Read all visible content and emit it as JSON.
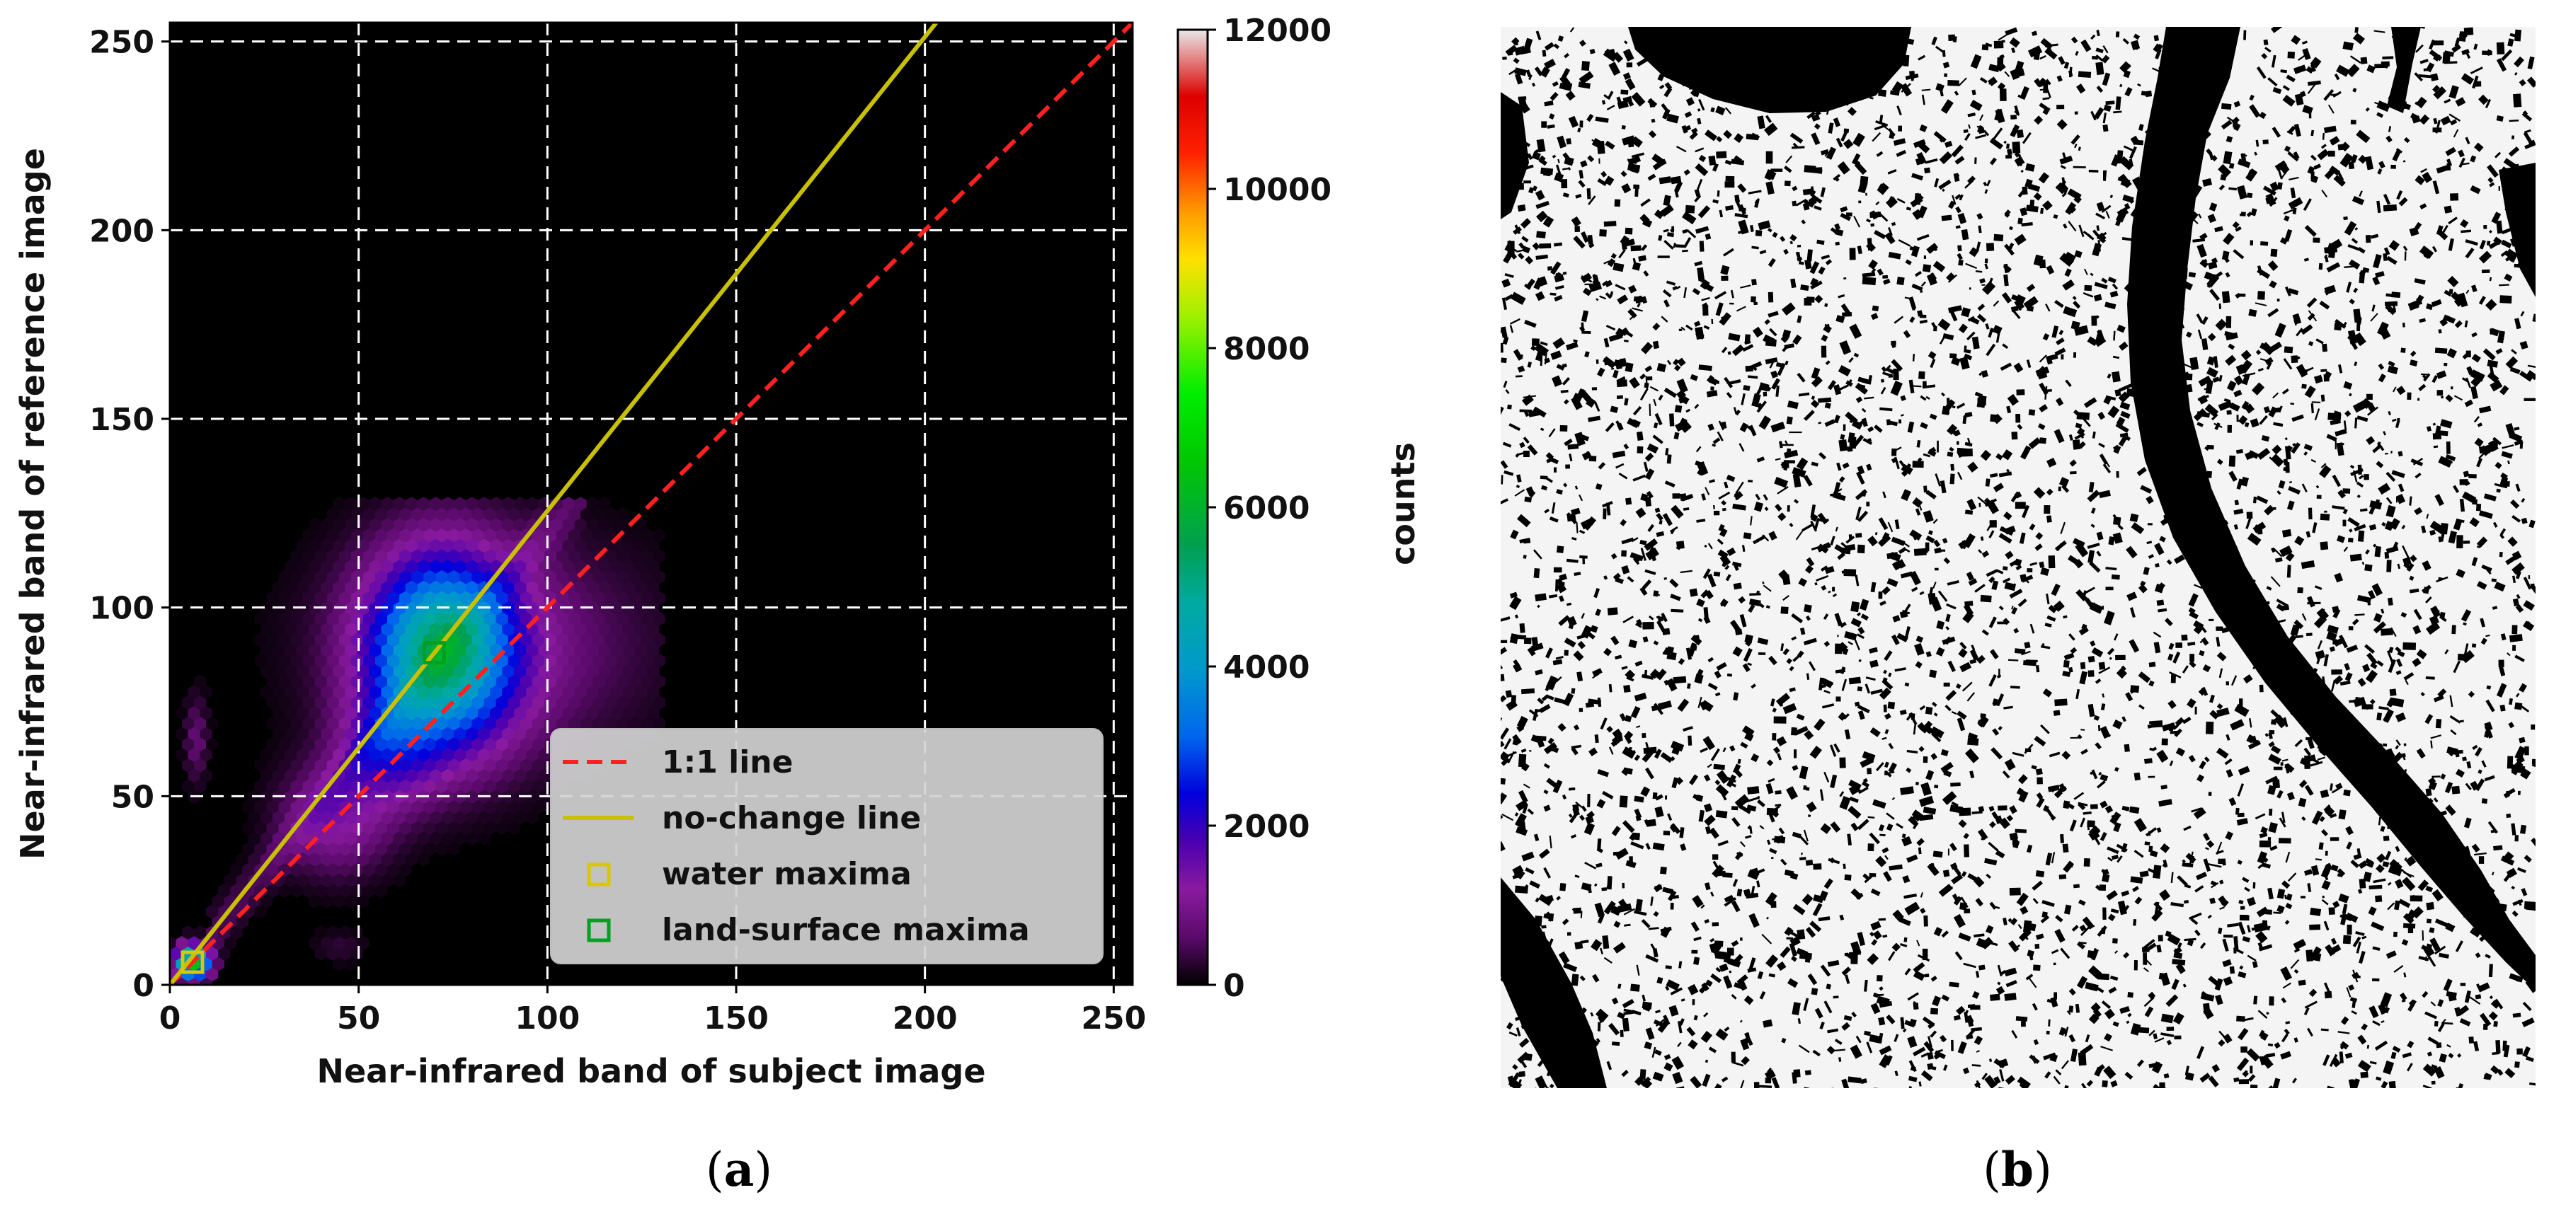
{
  "panels": [
    {
      "id": "a",
      "open": "(",
      "letter": "a",
      "close": ")"
    },
    {
      "id": "b",
      "open": "(",
      "letter": "b",
      "close": ")"
    }
  ],
  "chart_data": {
    "type": "heatmap",
    "subtype": "hexbin",
    "xlabel": "Near-infrared band of subject image",
    "ylabel": "Near-infrared band of reference image",
    "xlim": [
      0,
      255
    ],
    "ylim": [
      0,
      255
    ],
    "xticks": [
      0,
      50,
      100,
      150,
      200,
      250
    ],
    "yticks": [
      0,
      50,
      100,
      150,
      200,
      250
    ],
    "grid": true,
    "background": "#000000",
    "colormap": "nipy_spectral",
    "colorbar": {
      "label": "counts",
      "range": [
        0,
        12000
      ],
      "ticks": [
        0,
        2000,
        4000,
        6000,
        8000,
        10000,
        12000
      ],
      "stops": [
        {
          "v": 0.0,
          "c": "#000000"
        },
        {
          "v": 0.05,
          "c": "#5a0a6a"
        },
        {
          "v": 0.1,
          "c": "#8a1aa0"
        },
        {
          "v": 0.15,
          "c": "#4a00b0"
        },
        {
          "v": 0.2,
          "c": "#0000dd"
        },
        {
          "v": 0.26,
          "c": "#0066ee"
        },
        {
          "v": 0.33,
          "c": "#0099cc"
        },
        {
          "v": 0.4,
          "c": "#00aaa0"
        },
        {
          "v": 0.46,
          "c": "#00a050"
        },
        {
          "v": 0.55,
          "c": "#00c800"
        },
        {
          "v": 0.62,
          "c": "#00ee00"
        },
        {
          "v": 0.7,
          "c": "#a0f000"
        },
        {
          "v": 0.76,
          "c": "#ffe000"
        },
        {
          "v": 0.81,
          "c": "#ff9900"
        },
        {
          "v": 0.87,
          "c": "#ff2200"
        },
        {
          "v": 0.93,
          "c": "#dd0000"
        },
        {
          "v": 1.0,
          "c": "#e8e8e8"
        }
      ]
    },
    "lines": [
      {
        "name": "1:1 line",
        "color": "#ff2020",
        "style": "dashed",
        "points": [
          [
            0,
            0
          ],
          [
            255,
            255
          ]
        ]
      },
      {
        "name": "no-change line",
        "color": "#c8c000",
        "style": "solid",
        "points": [
          [
            0,
            0
          ],
          [
            203,
            255
          ]
        ]
      }
    ],
    "markers": [
      {
        "name": "water maxima",
        "color": "#d8c800",
        "x": 6,
        "y": 6
      },
      {
        "name": "land-surface maxima",
        "color": "#00a020",
        "x": 70,
        "y": 88
      }
    ],
    "density_clusters": [
      {
        "cx": 72,
        "cy": 88,
        "sx": 13,
        "sy": 17,
        "peak": 4800
      },
      {
        "cx": 85,
        "cy": 90,
        "sx": 28,
        "sy": 20,
        "peak": 900
      },
      {
        "cx": 44,
        "cy": 44,
        "sx": 10,
        "sy": 10,
        "peak": 1200
      },
      {
        "cx": 58,
        "cy": 62,
        "sx": 9,
        "sy": 10,
        "peak": 1400
      },
      {
        "cx": 6,
        "cy": 6,
        "sx": 3,
        "sy": 3,
        "peak": 6500
      },
      {
        "cx": 7,
        "cy": 65,
        "sx": 2,
        "sy": 8,
        "peak": 700
      },
      {
        "cx": 45,
        "cy": 10,
        "sx": 5,
        "sy": 3,
        "peak": 300
      }
    ],
    "legend": {
      "position": "lower-right",
      "entries": [
        "1:1 line",
        "no-change line",
        "water maxima",
        "land-surface maxima"
      ]
    }
  },
  "image_b": {
    "type": "binary water mask",
    "colors": {
      "water": "#000000",
      "land": "#ffffff"
    }
  }
}
